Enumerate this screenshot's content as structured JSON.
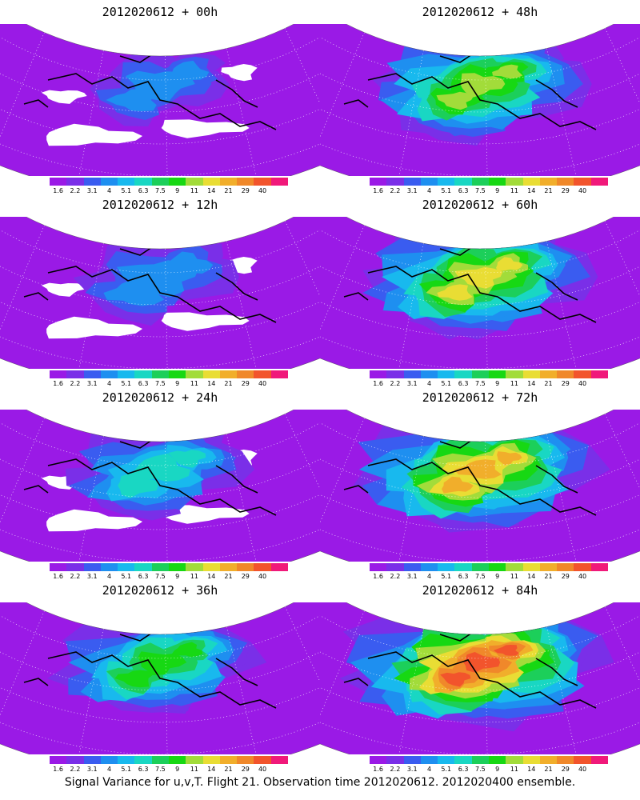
{
  "legend": {
    "colors": [
      "#9a1ae6",
      "#7a2fe8",
      "#3a5cf0",
      "#1e8ff0",
      "#18b9ee",
      "#19d7c3",
      "#1ccf5a",
      "#17d813",
      "#a2dc3a",
      "#e9dd34",
      "#f1ae2b",
      "#f0882a",
      "#f2542c",
      "#f0197a"
    ],
    "tick_labels": [
      "1.6",
      "2.2",
      "3.1",
      "4",
      "5.1",
      "6.3",
      "7.5",
      "9",
      "11",
      "14",
      "21",
      "29",
      "40"
    ]
  },
  "panels": [
    {
      "title": "2012020612 + 00h",
      "intensity": 0.1,
      "white_gaps": true
    },
    {
      "title": "2012020612 + 48h",
      "intensity": 0.65,
      "white_gaps": false
    },
    {
      "title": "2012020612 + 12h",
      "intensity": 0.25,
      "white_gaps": true
    },
    {
      "title": "2012020612 + 60h",
      "intensity": 0.72,
      "white_gaps": false
    },
    {
      "title": "2012020612 + 24h",
      "intensity": 0.4,
      "white_gaps": true
    },
    {
      "title": "2012020612 + 72h",
      "intensity": 0.8,
      "white_gaps": false
    },
    {
      "title": "2012020612 + 36h",
      "intensity": 0.52,
      "white_gaps": false
    },
    {
      "title": "2012020612 + 84h",
      "intensity": 0.9,
      "white_gaps": false
    }
  ],
  "caption": "Signal Variance for u,v,T. Flight 21. Observation time 2012020612. 2012020400 ensemble."
}
